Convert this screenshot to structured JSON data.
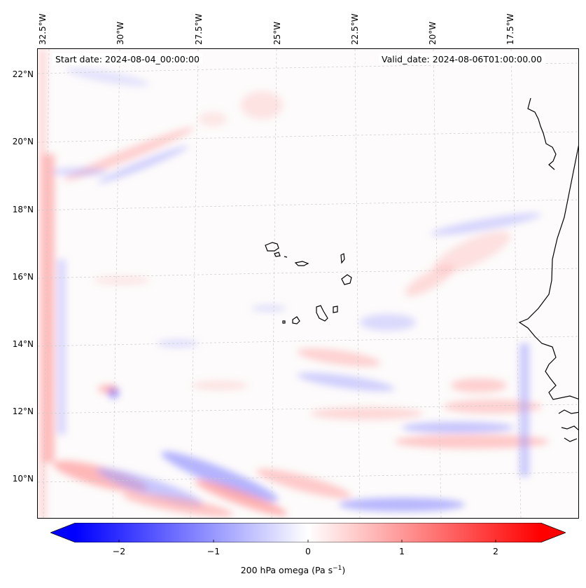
{
  "header": {
    "start_date": "Start date: 2024-08-04_00:00:00",
    "valid_date": "Valid_date: 2024-08-06T01:00:00.00"
  },
  "axes": {
    "lon_labels": [
      "32.5°W",
      "30°W",
      "27.5°W",
      "25°W",
      "22.5°W",
      "20°W",
      "17.5°W"
    ],
    "lat_labels": [
      "22°N",
      "20°N",
      "18°N",
      "16°N",
      "14°N",
      "12°N",
      "10°N"
    ],
    "lon_range": [
      -33.3,
      -15.6
    ],
    "lat_range": [
      8.9,
      22.8
    ]
  },
  "colorbar": {
    "label": "200 hPa omega (Pa s",
    "label_exp": "−1",
    "label_close": ")",
    "ticks": [
      "−2",
      "−1",
      "0",
      "1",
      "2"
    ],
    "min": -2.5,
    "max": 2.5,
    "colormap": "bwr",
    "negative_color": "#0000ff",
    "zero_color": "#ffffff",
    "positive_color": "#ff0000"
  },
  "colors": {
    "coastline": "#000000",
    "gridline": "#c8c8c8"
  }
}
